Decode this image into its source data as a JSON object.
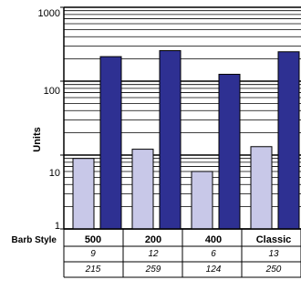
{
  "chart_data": {
    "type": "bar",
    "scale": "log",
    "ylim": [
      1,
      1000
    ],
    "ylabel": "Units",
    "y_ticks": [
      "1",
      "10",
      "100",
      "1000"
    ],
    "grid": "horizontal minor and major",
    "row_header": "Barb Style",
    "categories": [
      "500",
      "200",
      "400",
      "Classic"
    ],
    "series": [
      {
        "color": "#c8c8e8",
        "values": [
          9,
          12,
          6,
          13
        ]
      },
      {
        "color": "#2e3092",
        "values": [
          215,
          259,
          124,
          250
        ]
      }
    ],
    "table_rows": [
      [
        "9",
        "12",
        "6",
        "13"
      ],
      [
        "215",
        "259",
        "124",
        "250"
      ]
    ]
  }
}
